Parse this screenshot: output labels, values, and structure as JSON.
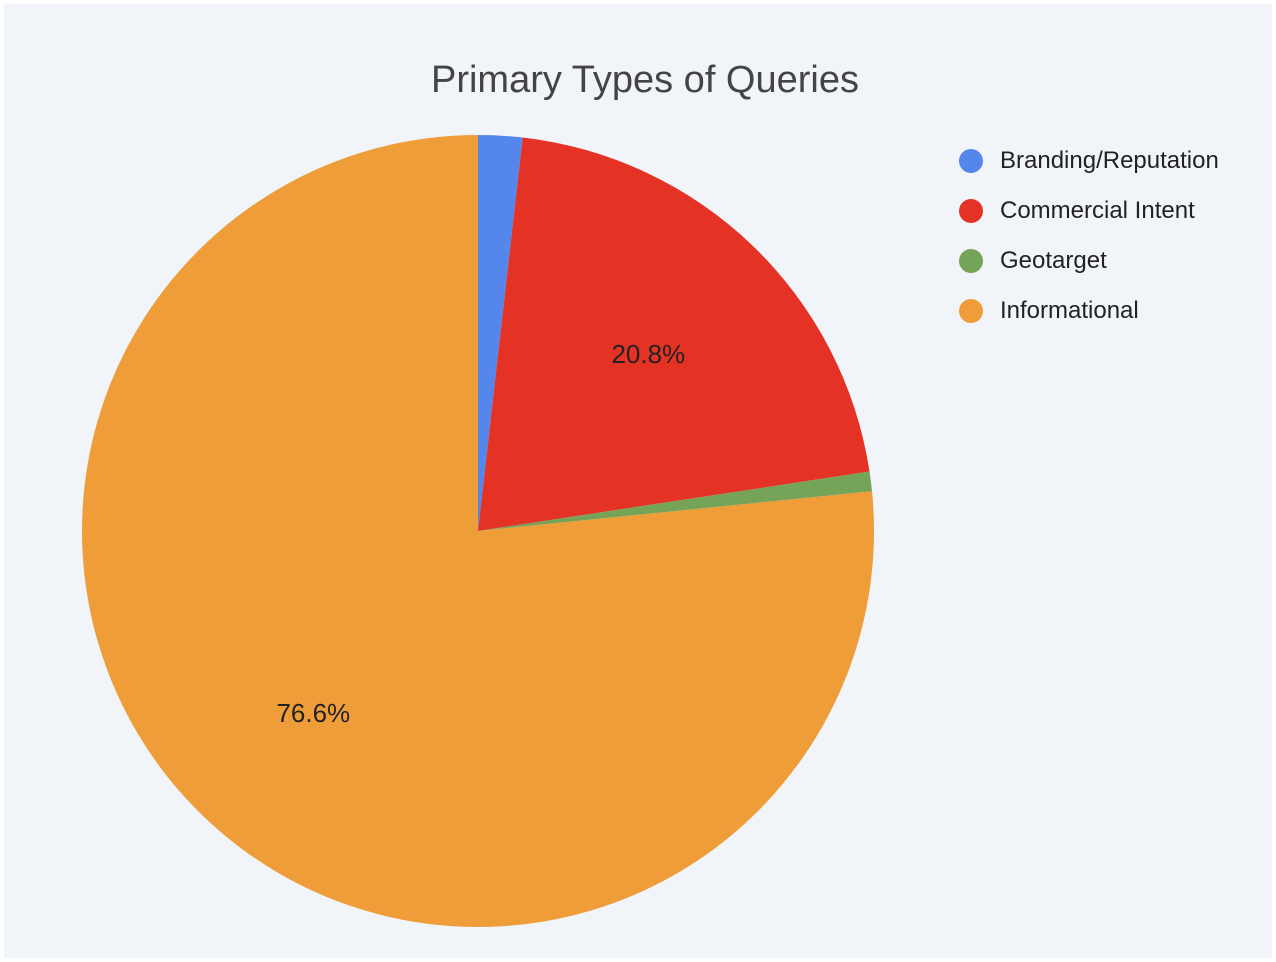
{
  "chart_data": {
    "type": "pie",
    "title": "Primary Types of Queries",
    "slices": [
      {
        "name": "Branding/Reputation",
        "value": 1.8,
        "color": "#5486ec"
      },
      {
        "name": "Commercial Intent",
        "value": 20.8,
        "color": "#e43325",
        "label": "20.8%"
      },
      {
        "name": "Geotarget",
        "value": 0.8,
        "color": "#75a459"
      },
      {
        "name": "Informational",
        "value": 76.6,
        "color": "#ee9d39",
        "label": "76.6%"
      }
    ],
    "legend_position": "right"
  }
}
